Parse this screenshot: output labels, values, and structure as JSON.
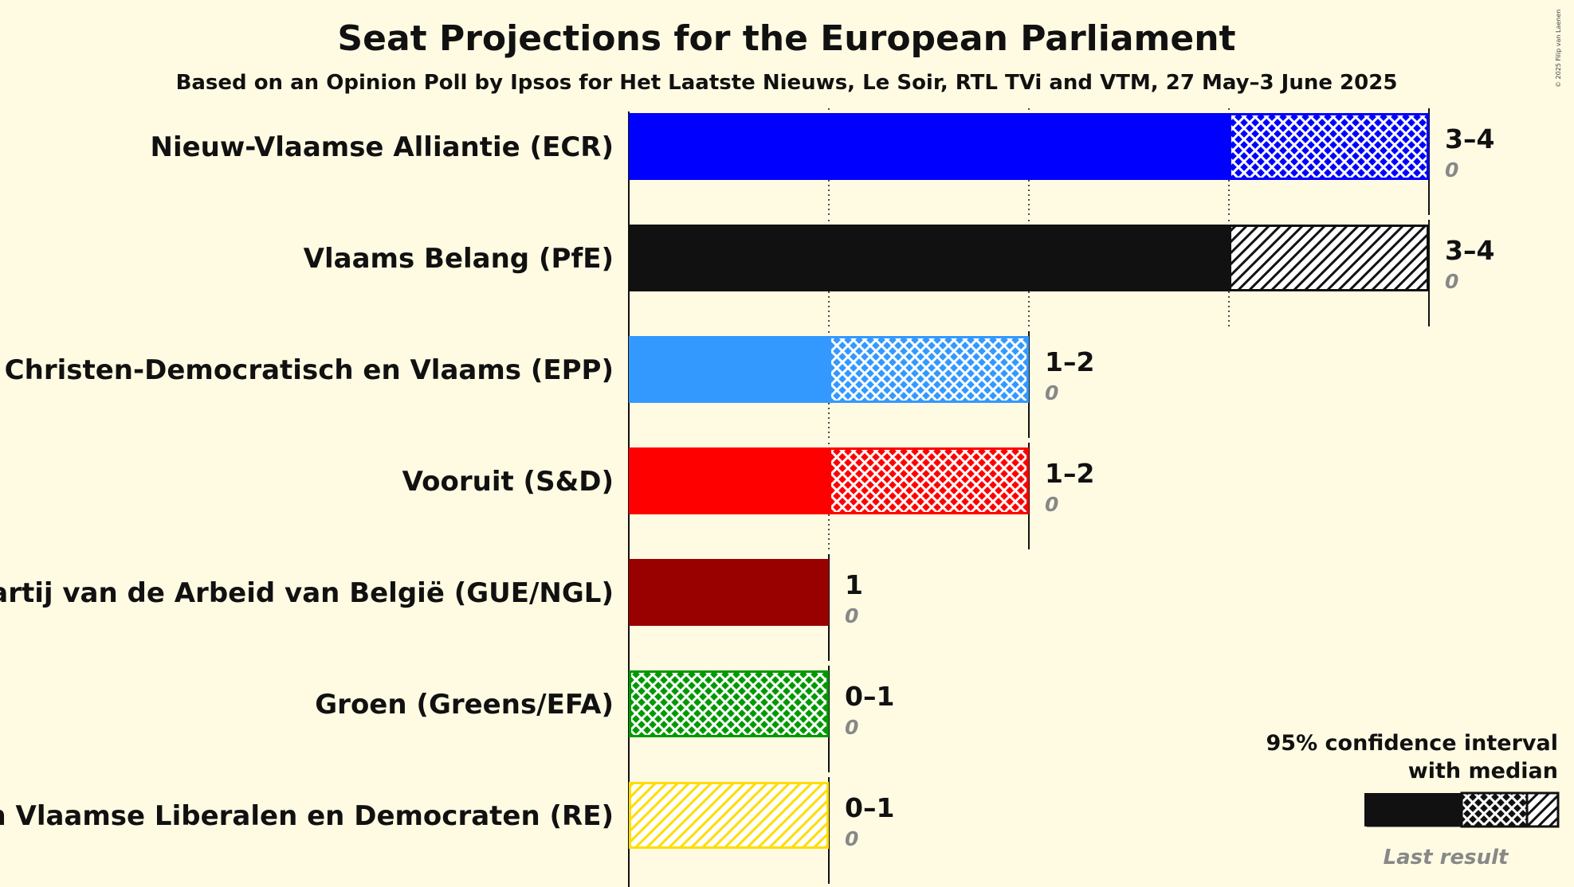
{
  "chart_data": {
    "type": "bar",
    "title": "Seat Projections for the European Parliament",
    "subtitle": "Based on an Opinion Poll by Ipsos for Het Laatste Nieuws, Le Soir, RTL TVi and VTM, 27 May–3 June 2025",
    "xlim": [
      0,
      4
    ],
    "series": [
      {
        "name": "Nieuw-Vlaamse Alliantie (ECR)",
        "color": "#0000ff",
        "low": 3,
        "median": 3,
        "high": 4,
        "pattern": "crosshatch",
        "range_label": "3–4",
        "last_result": 0,
        "last_label": "0"
      },
      {
        "name": "Vlaams Belang (PfE)",
        "color": "#111111",
        "low": 3,
        "median": 3,
        "high": 4,
        "pattern": "diagonal",
        "range_label": "3–4",
        "last_result": 0,
        "last_label": "0"
      },
      {
        "name": "Christen-Democratisch en Vlaams (EPP)",
        "color": "#3399ff",
        "low": 1,
        "median": 1,
        "high": 2,
        "pattern": "crosshatch",
        "range_label": "1–2",
        "last_result": 0,
        "last_label": "0"
      },
      {
        "name": "Vooruit (S&D)",
        "color": "#ff0000",
        "low": 1,
        "median": 1,
        "high": 2,
        "pattern": "crosshatch",
        "range_label": "1–2",
        "last_result": 0,
        "last_label": "0"
      },
      {
        "name": "Partij van de Arbeid van België (GUE/NGL)",
        "color": "#990000",
        "low": 1,
        "median": 1,
        "high": 1,
        "pattern": "none",
        "range_label": "1",
        "last_result": 0,
        "last_label": "0"
      },
      {
        "name": "Groen (Greens/EFA)",
        "color": "#009900",
        "low": 0,
        "median": 0,
        "high": 1,
        "pattern": "crosshatch",
        "range_label": "0–1",
        "last_result": 0,
        "last_label": "0"
      },
      {
        "name": "Open Vlaamse Liberalen en Democraten (RE)",
        "color": "#ffdd00",
        "low": 0,
        "median": 0,
        "high": 1,
        "pattern": "diagonal",
        "range_label": "0–1",
        "last_result": 0,
        "last_label": "0"
      }
    ],
    "legend": {
      "line1": "95% confidence interval",
      "line2": "with median",
      "last": "Last result",
      "placement": "bottom-right"
    },
    "copyright": "© 2025 Filip van Laenen"
  }
}
